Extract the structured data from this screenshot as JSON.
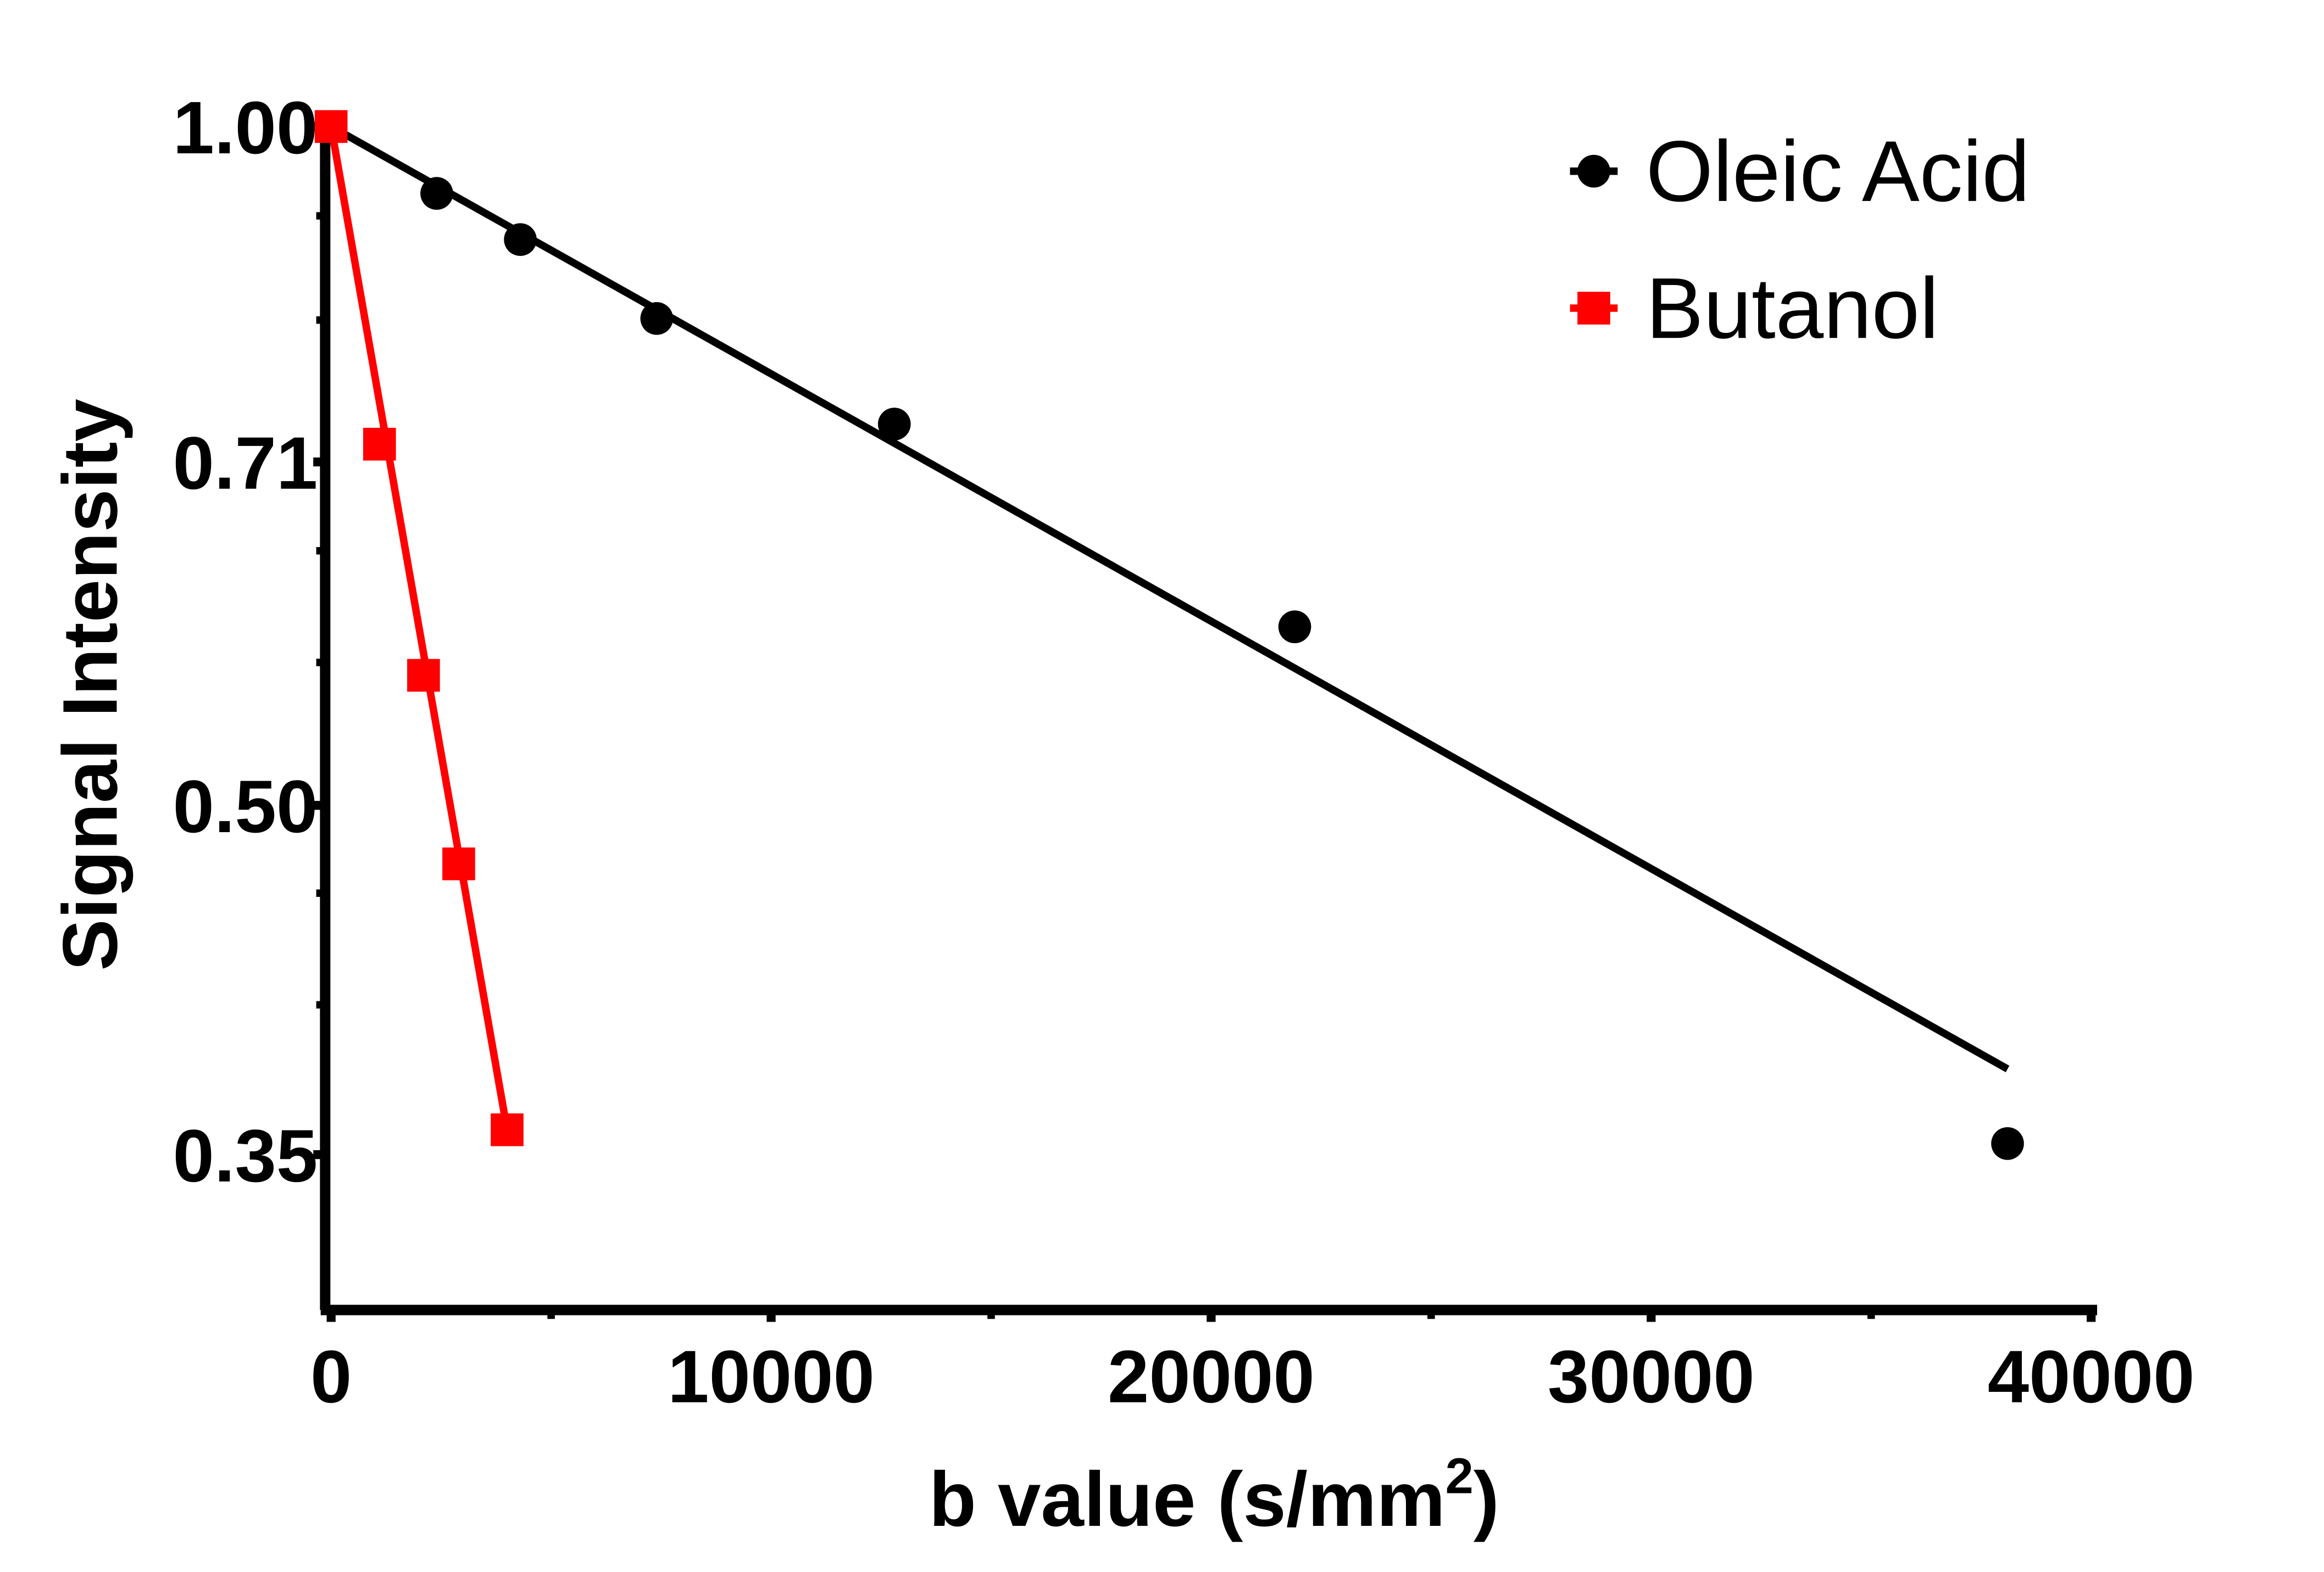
{
  "chart_data": {
    "type": "line",
    "title": "",
    "xlabel": "b value (s/mm",
    "xlabel_sup": "2",
    "xlabel_close": ")",
    "ylabel": "Signal Intensity",
    "xlim": [
      -200,
      40000
    ],
    "ylim": [
      0.303,
      1.0
    ],
    "yscale": "log2",
    "x_ticks": [
      0,
      10000,
      20000,
      30000,
      40000
    ],
    "x_tick_labels": [
      "0",
      "10000",
      "20000",
      "30000",
      "40000"
    ],
    "y_ticks": [
      1.0,
      0.71,
      0.5,
      0.35
    ],
    "y_tick_labels": [
      "1.00",
      "0.71",
      "0.50",
      "0.35"
    ],
    "grid": false,
    "legend_position": "top-right",
    "series": [
      {
        "name": "Oleic Acid",
        "color": "#000000",
        "marker": "circle",
        "x": [
          0,
          2400,
          4300,
          7400,
          12800,
          21900,
          38100
        ],
        "y": [
          1.0,
          0.934,
          0.891,
          0.822,
          0.738,
          0.6,
          0.354
        ],
        "fit": {
          "x": [
            0,
            38100
          ],
          "y": [
            1.0,
            0.382
          ]
        }
      },
      {
        "name": "Butanol",
        "color": "#ff0000",
        "marker": "square",
        "x": [
          0,
          1100,
          2100,
          2900,
          4000
        ],
        "y": [
          1.0,
          0.723,
          0.571,
          0.471,
          0.359
        ],
        "fit": {
          "x": [
            0,
            4000
          ],
          "y": [
            1.0,
            0.359
          ]
        }
      }
    ]
  }
}
